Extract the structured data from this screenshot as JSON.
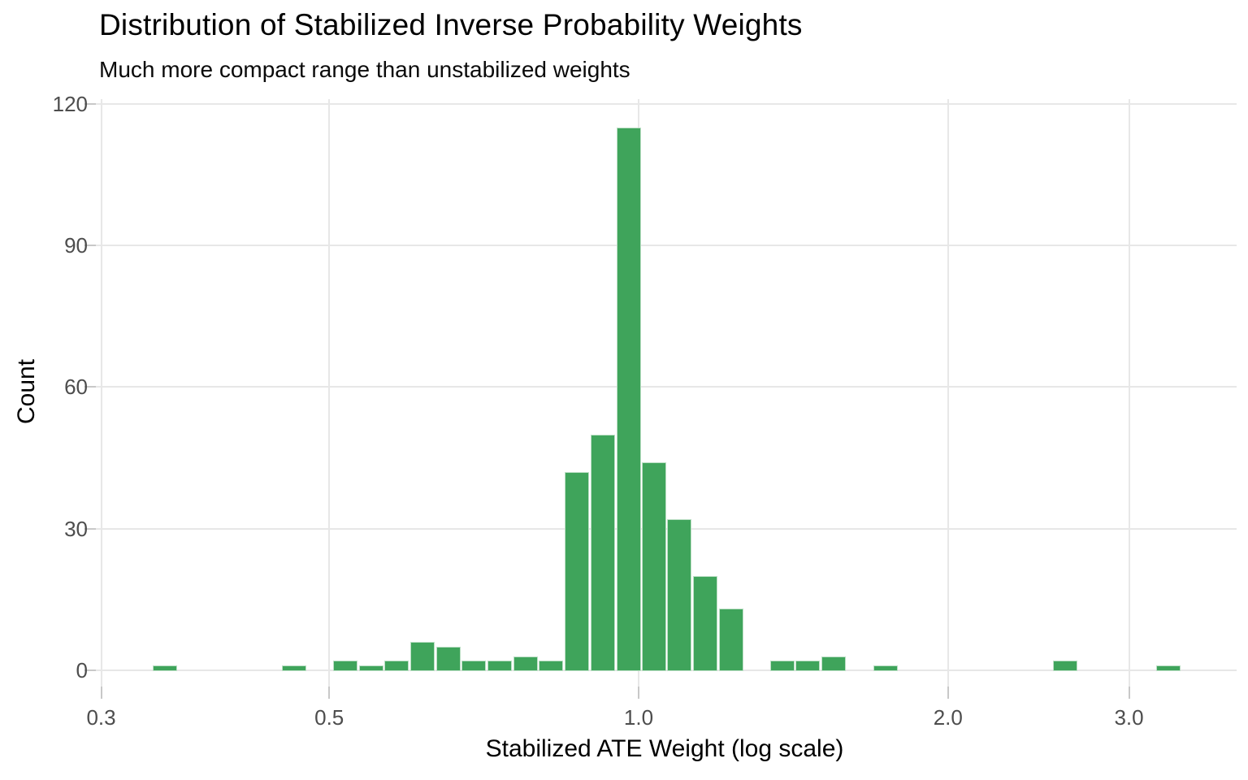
{
  "chart_data": {
    "type": "histogram",
    "title": "Distribution of Stabilized Inverse Probability Weights",
    "subtitle": "Much more compact range than unstabilized weights",
    "xlabel": "Stabilized ATE Weight (log scale)",
    "ylabel": "Count",
    "x_scale": "log10",
    "grid": true,
    "legend": false,
    "bar_color": "#3FA45B",
    "bar_stroke": "#ffffff",
    "gridline_color": "#e7e7e7",
    "tick_label_color": "#4d4d4d",
    "ylim": [
      0,
      121
    ],
    "xlim_log10": [
      -0.55,
      0.55
    ],
    "bin_width_log10": 0.025,
    "x_ticks": [
      {
        "value": 0.3,
        "label": "0.3"
      },
      {
        "value": 0.5,
        "label": "0.5"
      },
      {
        "value": 1.0,
        "label": "1.0"
      },
      {
        "value": 2.0,
        "label": "2.0"
      },
      {
        "value": 3.0,
        "label": "3.0"
      }
    ],
    "y_ticks": [
      {
        "value": 0,
        "label": "0"
      },
      {
        "value": 30,
        "label": "30"
      },
      {
        "value": 60,
        "label": "60"
      },
      {
        "value": 90,
        "label": "90"
      },
      {
        "value": 120,
        "label": "120"
      }
    ],
    "bins": [
      {
        "x": 0.346,
        "count": 1
      },
      {
        "x": 0.462,
        "count": 1
      },
      {
        "x": 0.518,
        "count": 2
      },
      {
        "x": 0.549,
        "count": 1
      },
      {
        "x": 0.581,
        "count": 2
      },
      {
        "x": 0.616,
        "count": 6
      },
      {
        "x": 0.653,
        "count": 5
      },
      {
        "x": 0.691,
        "count": 2
      },
      {
        "x": 0.733,
        "count": 2
      },
      {
        "x": 0.776,
        "count": 3
      },
      {
        "x": 0.822,
        "count": 2
      },
      {
        "x": 0.871,
        "count": 42
      },
      {
        "x": 0.923,
        "count": 50
      },
      {
        "x": 0.978,
        "count": 115
      },
      {
        "x": 1.036,
        "count": 44
      },
      {
        "x": 1.096,
        "count": 32
      },
      {
        "x": 1.161,
        "count": 20
      },
      {
        "x": 1.23,
        "count": 13
      },
      {
        "x": 1.38,
        "count": 2
      },
      {
        "x": 1.461,
        "count": 2
      },
      {
        "x": 1.549,
        "count": 3
      },
      {
        "x": 1.738,
        "count": 1
      },
      {
        "x": 2.601,
        "count": 2
      },
      {
        "x": 3.275,
        "count": 1
      }
    ]
  }
}
